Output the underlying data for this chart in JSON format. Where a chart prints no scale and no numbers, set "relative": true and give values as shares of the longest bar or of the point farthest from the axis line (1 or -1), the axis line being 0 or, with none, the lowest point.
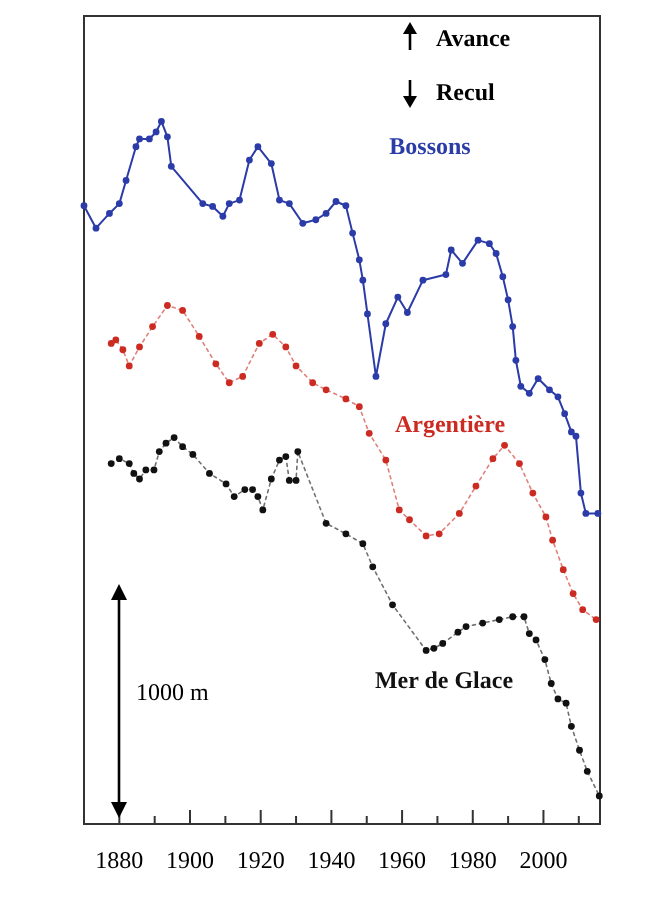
{
  "chart_data": {
    "type": "line",
    "relative": true,
    "marker": "circle",
    "xlim": [
      1870,
      2016
    ],
    "xticks": [
      {
        "value": 1870,
        "label": null
      },
      1880,
      {
        "value": 1890,
        "label": null
      },
      1900,
      {
        "value": 1910,
        "label": null
      },
      1920,
      {
        "value": 1930,
        "label": null
      },
      1940,
      {
        "value": 1950,
        "label": null
      },
      1960,
      {
        "value": 1970,
        "label": null
      },
      1980,
      {
        "value": 1990,
        "label": null
      },
      2000,
      {
        "value": 2010,
        "label": null
      }
    ],
    "annotations": [
      "Avance",
      "Recul",
      "1000 m"
    ],
    "series": [
      {
        "name": "Bossons",
        "color": "#2b3ba8",
        "line_style": "solid",
        "x": [
          1870,
          1873.4,
          1877.2,
          1880,
          1881.9,
          1884.7,
          1885.7,
          1888.5,
          1890.4,
          1891.9,
          1893.6,
          1894.7,
          1903.6,
          1906.4,
          1909.3,
          1911.1,
          1914,
          1916.8,
          1919.2,
          1923,
          1925.3,
          1928.1,
          1931.9,
          1935.6,
          1938.5,
          1941.3,
          1944.1,
          1946,
          1947.9,
          1948.9,
          1950.2,
          1952.6,
          1955.4,
          1958.8,
          1961.5,
          1965.9,
          1972.4,
          1973.9,
          1977.1,
          1981.5,
          1984.7,
          1986.6,
          1988.5,
          1990,
          1991.3,
          1992.2,
          1993.6,
          1996,
          1998.5,
          2001.7,
          2004.1,
          2006,
          2007.9,
          2009.2,
          2010.6,
          2012,
          2015.4
        ],
        "values": [
          0.88,
          0.848,
          0.869,
          0.883,
          0.916,
          0.964,
          0.975,
          0.975,
          0.985,
          1.0,
          0.978,
          0.936,
          0.883,
          0.879,
          0.865,
          0.883,
          0.888,
          0.945,
          0.964,
          0.94,
          0.888,
          0.883,
          0.855,
          0.86,
          0.869,
          0.886,
          0.88,
          0.841,
          0.803,
          0.774,
          0.726,
          0.637,
          0.712,
          0.75,
          0.728,
          0.774,
          0.782,
          0.817,
          0.798,
          0.831,
          0.826,
          0.812,
          0.779,
          0.746,
          0.708,
          0.66,
          0.623,
          0.613,
          0.634,
          0.618,
          0.608,
          0.584,
          0.558,
          0.552,
          0.471,
          0.442,
          0.442
        ]
      },
      {
        "name": "Argentière",
        "color": "#cc2b22",
        "line_style": "dotted",
        "x": [
          1877.7,
          1879,
          1881,
          1882.8,
          1885.7,
          1889.4,
          1893.6,
          1897.9,
          1902.6,
          1907.3,
          1911.1,
          1914.9,
          1919.6,
          1923.4,
          1927.1,
          1930,
          1934.7,
          1938.5,
          1944.1,
          1947.9,
          1950.7,
          1955.4,
          1959.2,
          1962.1,
          1966.8,
          1970.5,
          1976.2,
          1980.9,
          1985.7,
          1989,
          1993.2,
          1997,
          2000.7,
          2002.6,
          2005.6,
          2008.4,
          2011.1,
          2014.9
        ],
        "values": [
          0.684,
          0.689,
          0.675,
          0.652,
          0.679,
          0.708,
          0.738,
          0.731,
          0.694,
          0.655,
          0.628,
          0.637,
          0.684,
          0.697,
          0.679,
          0.652,
          0.628,
          0.618,
          0.605,
          0.594,
          0.556,
          0.518,
          0.447,
          0.433,
          0.41,
          0.413,
          0.442,
          0.481,
          0.52,
          0.539,
          0.513,
          0.471,
          0.437,
          0.404,
          0.362,
          0.328,
          0.305,
          0.291
        ]
      },
      {
        "name": "Mer de Glace",
        "color": "#111111",
        "line_style": "dotted",
        "x": [
          1877.7,
          1880,
          1882.8,
          1884.1,
          1885.7,
          1887.5,
          1889.8,
          1891.3,
          1893.2,
          1895.5,
          1897.9,
          1900.8,
          1905.5,
          1910.2,
          1912.5,
          1915.5,
          1917.7,
          1919.2,
          1920.6,
          1923,
          1925.3,
          1927.1,
          1928.1,
          1930,
          1930.5,
          1938.5,
          1944.1,
          1948.9,
          1951.7,
          1957.3,
          1966.8,
          1969,
          1971.5,
          1975.8,
          1978.1,
          1982.8,
          1987.5,
          1991.3,
          1994.5,
          1996,
          1997.9,
          2000.4,
          2002.2,
          2004.1,
          2006.4,
          2007.9,
          2010.2,
          2012.4,
          2015.8
        ],
        "values": [
          0.513,
          0.52,
          0.513,
          0.499,
          0.491,
          0.504,
          0.504,
          0.53,
          0.542,
          0.55,
          0.537,
          0.526,
          0.499,
          0.484,
          0.466,
          0.476,
          0.476,
          0.466,
          0.447,
          0.491,
          0.518,
          0.523,
          0.489,
          0.489,
          0.53,
          0.428,
          0.413,
          0.399,
          0.366,
          0.312,
          0.247,
          0.25,
          0.257,
          0.273,
          0.281,
          0.286,
          0.291,
          0.295,
          0.295,
          0.271,
          0.262,
          0.234,
          0.2,
          0.178,
          0.172,
          0.139,
          0.105,
          0.075,
          0.04
        ]
      }
    ]
  }
}
